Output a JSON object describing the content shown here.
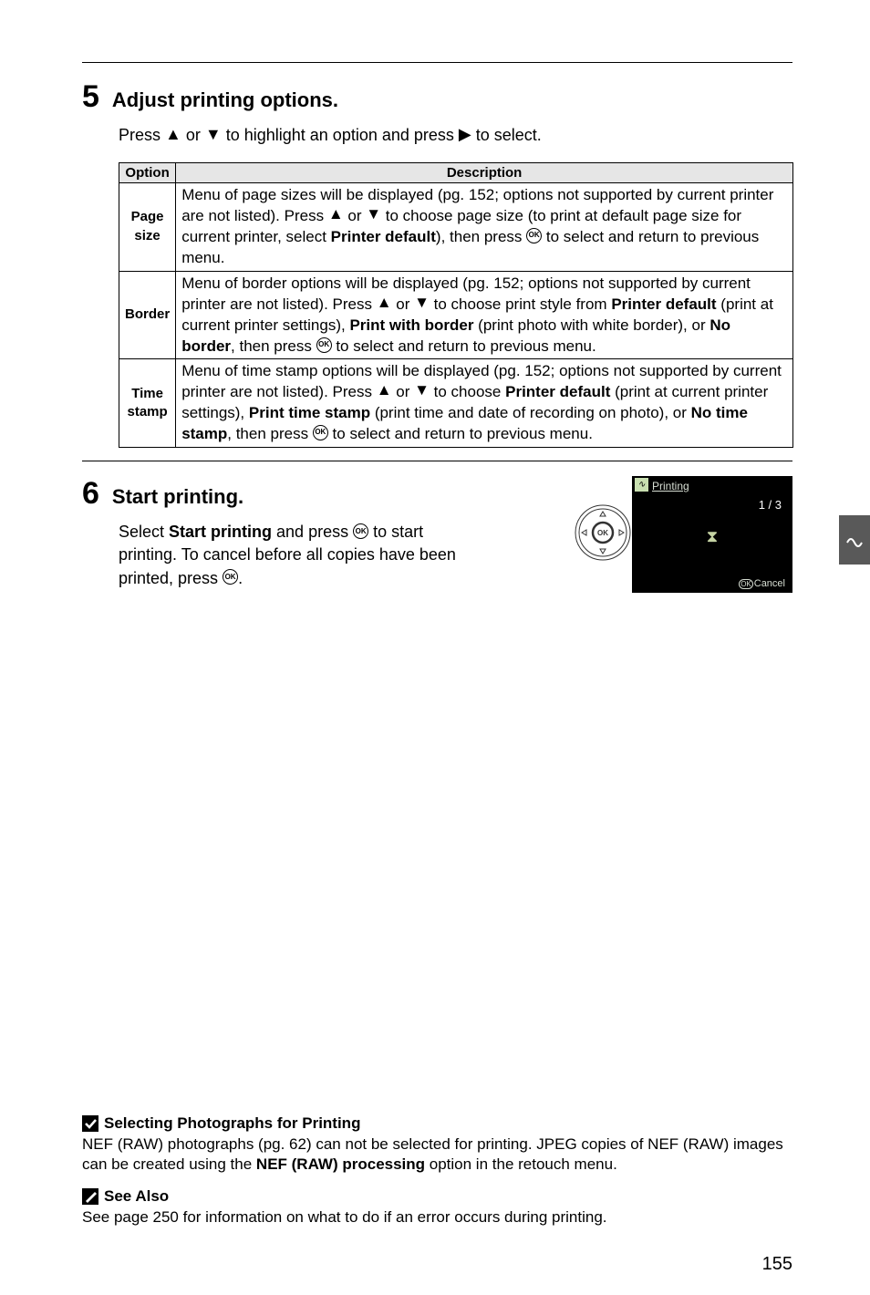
{
  "step5": {
    "num": "5",
    "title": "Adjust printing options.",
    "body_pre": "Press ",
    "body_mid": " or ",
    "body_post1": " to highlight an option and press ",
    "body_post2": " to select."
  },
  "table": {
    "headers": {
      "option": "Option",
      "desc": "Description"
    },
    "rows": [
      {
        "name_html": "Page<br>size",
        "name": "Page size",
        "desc_pre": "Menu of page sizes will be displayed (pg. 152; options not supported by current printer are not listed).  Press ",
        "desc_mid": " or ",
        "desc_mid2": " to choose page size (to print at default page size for current printer, select ",
        "bold1": "Printer default",
        "desc_post1": "), then press ",
        "desc_post2": " to select and return to previous menu."
      },
      {
        "name": "Border",
        "desc_pre": "Menu of border options will be displayed (pg. 152; options not supported by current printer are not listed).  Press ",
        "desc_mid": " or ",
        "desc_mid2": " to choose print style from ",
        "bold1": "Printer default",
        "desc_p1a": " (print at current printer settings), ",
        "bold2": "Print with border",
        "desc_p1b": " (print photo with white border), or ",
        "bold3": "No border",
        "desc_post1": ", then press ",
        "desc_post2": " to select and return to previous menu."
      },
      {
        "name_html": "Time<br>stamp",
        "name": "Time stamp",
        "desc_pre": "Menu of time stamp options will be displayed (pg. 152; options not supported by current printer are not listed).  Press ",
        "desc_mid": " or ",
        "desc_mid2": " to choose ",
        "bold1": "Printer default",
        "desc_p1a": " (print at current printer settings), ",
        "bold2": "Print time stamp",
        "desc_p1b": " (print time and date of recording on photo), or ",
        "bold3": "No time stamp",
        "desc_post1": ", then press ",
        "desc_post2": " to select and return to previous menu."
      }
    ]
  },
  "step6": {
    "num": "6",
    "title": "Start printing.",
    "body_pre": "Select ",
    "bold1": "Start printing",
    "body_mid1": " and press ",
    "body_mid2": " to start printing.  To cancel before all copies have been printed, press ",
    "body_post": "."
  },
  "lcd": {
    "title": "Printing",
    "count": "1 / 3",
    "cancel_prefix": "OK",
    "cancel": "Cancel"
  },
  "footnotes": {
    "sel_title": "Selecting Photographs for Printing",
    "sel_body_pre": "NEF (RAW) photographs (pg. 62) can not be selected for printing.  JPEG copies of NEF (RAW) images can be created using the ",
    "sel_bold": "NEF (RAW) processing",
    "sel_body_post": " option in the retouch menu.",
    "see_title": "See Also",
    "see_body": "See page 250 for information on what to do if an error occurs during printing."
  },
  "page_num": "155",
  "glyphs": {
    "tri_up": "▲",
    "tri_down": "▼",
    "tri_right": "▶",
    "ok": "OK",
    "hourglass": "⧗",
    "pencil": "✎",
    "check": "✔",
    "side_connect": "∿"
  },
  "colors": {
    "page_bg": "#ffffff",
    "text": "#000000",
    "table_header_bg": "#e6e6e6",
    "side_tab_bg": "#595959",
    "lcd_bg": "#000000",
    "lcd_text": "#d8dfd4",
    "lcd_accent": "#c5d3a3"
  }
}
